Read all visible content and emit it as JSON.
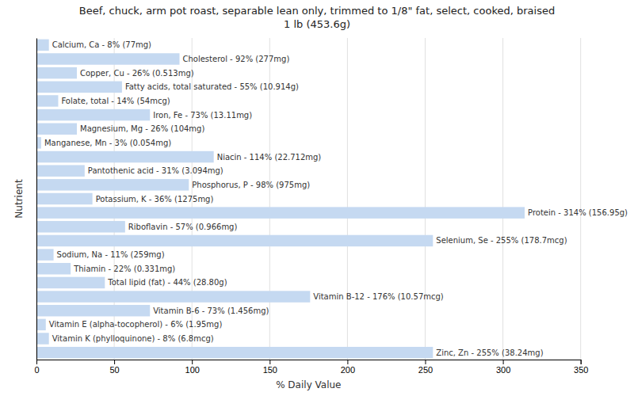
{
  "chart_data": {
    "type": "bar",
    "orientation": "horizontal",
    "title": "Beef, chuck, arm pot roast, separable lean only, trimmed to 1/8\" fat, select, cooked, braised\n1 lb (453.6g)",
    "xlabel": "% Daily Value",
    "ylabel": "Nutrient",
    "categories": [
      "Calcium, Ca - 8% (77mg)",
      "Cholesterol - 92% (277mg)",
      "Copper, Cu - 26% (0.513mg)",
      "Fatty acids, total saturated - 55% (10.914g)",
      "Folate, total - 14% (54mcg)",
      "Iron, Fe - 73% (13.11mg)",
      "Magnesium, Mg - 26% (104mg)",
      "Manganese, Mn - 3% (0.054mg)",
      "Niacin - 114% (22.712mg)",
      "Pantothenic acid - 31% (3.094mg)",
      "Phosphorus, P - 98% (975mg)",
      "Potassium, K - 36% (1275mg)",
      "Protein - 314% (156.95g)",
      "Riboflavin - 57% (0.966mg)",
      "Selenium, Se - 255% (178.7mcg)",
      "Sodium, Na - 11% (259mg)",
      "Thiamin - 22% (0.331mg)",
      "Total lipid (fat) - 44% (28.80g)",
      "Vitamin B-12 - 176% (10.57mcg)",
      "Vitamin B-6 - 73% (1.456mg)",
      "Vitamin E (alpha-tocopherol) - 6% (1.95mg)",
      "Vitamin K (phylloquinone) - 8% (6.8mcg)",
      "Zinc, Zn - 255% (38.24mg)"
    ],
    "values": [
      8,
      92,
      26,
      55,
      14,
      73,
      26,
      3,
      114,
      31,
      98,
      36,
      314,
      57,
      255,
      11,
      22,
      44,
      176,
      73,
      6,
      8,
      255
    ],
    "color": "#c5d9f1",
    "xlim": [
      0,
      350
    ],
    "xticks": [
      0,
      50,
      100,
      150,
      200,
      250,
      300,
      350
    ],
    "grid": true,
    "tick_labels": "x"
  }
}
